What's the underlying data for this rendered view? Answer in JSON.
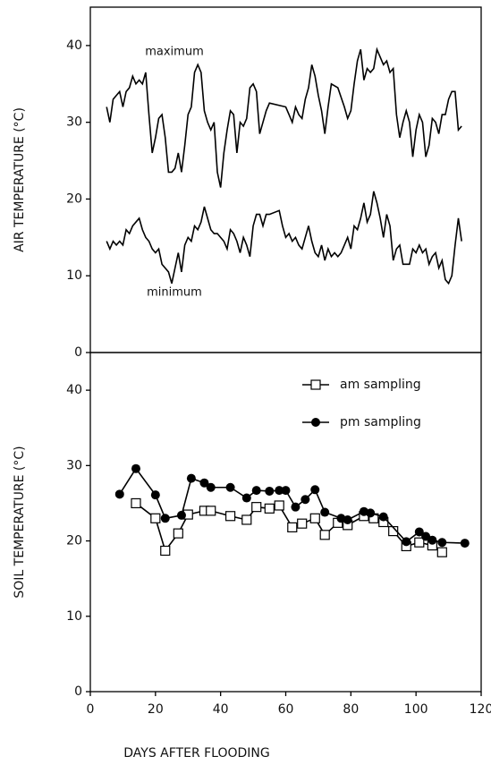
{
  "chart_data": [
    {
      "type": "line",
      "y_label": "AIR TEMPERATURE (°C)",
      "annotations": [
        "maximum",
        "minimum"
      ],
      "xlim": [
        0,
        120
      ],
      "ylim": [
        0,
        45
      ],
      "yticks": [
        0,
        10,
        20,
        30,
        40
      ],
      "series": [
        {
          "color": "#000000",
          "x": [
            5,
            6,
            7,
            8,
            9,
            10,
            11,
            12,
            13,
            14,
            15,
            16,
            17,
            18,
            19,
            20,
            21,
            22,
            23,
            24,
            25,
            26,
            27,
            28,
            29,
            30,
            31,
            32,
            33,
            34,
            35,
            36,
            37,
            38,
            39,
            40,
            41,
            42,
            43,
            44,
            45,
            46,
            47,
            48,
            49,
            50,
            51,
            52,
            53,
            54,
            55,
            60,
            61,
            62,
            63,
            64,
            65,
            66,
            67,
            68,
            69,
            70,
            71,
            72,
            73,
            74,
            76,
            78,
            79,
            80,
            81,
            82,
            83,
            84,
            85,
            86,
            87,
            88,
            89,
            90,
            91,
            92,
            93,
            94,
            95,
            96,
            97,
            98,
            99,
            100,
            101,
            102,
            103,
            104,
            105,
            106,
            107,
            108,
            109,
            110,
            111,
            112,
            113,
            114
          ],
          "values": [
            32,
            30,
            33,
            33.5,
            34,
            32,
            34,
            34.5,
            36,
            35,
            35.5,
            35,
            36.5,
            31,
            26,
            28,
            30.5,
            31,
            28,
            23.5,
            23.5,
            24,
            26,
            23.5,
            27,
            31,
            32,
            36.5,
            37.5,
            36.5,
            31.5,
            30,
            29,
            30,
            23.5,
            21.5,
            26,
            29,
            31.5,
            31,
            26,
            30,
            29.5,
            30.5,
            34.5,
            35,
            34,
            28.5,
            30,
            31.5,
            32.5,
            32,
            31,
            30,
            32,
            31,
            30.5,
            33,
            34.5,
            37.5,
            36,
            33.5,
            31.5,
            28.5,
            32,
            35,
            34.5,
            32,
            30.5,
            31.5,
            35,
            38,
            39.5,
            35.5,
            37,
            36.5,
            37,
            39.5,
            38.5,
            37.5,
            38,
            36.5,
            37,
            31,
            28,
            30,
            31.5,
            30,
            25.5,
            29,
            31,
            30,
            25.5,
            27,
            30.5,
            30,
            28.5,
            31,
            31,
            33,
            34,
            34,
            29,
            29.5
          ]
        },
        {
          "color": "#000000",
          "x": [
            5,
            6,
            7,
            8,
            9,
            10,
            11,
            12,
            13,
            14,
            15,
            16,
            17,
            18,
            19,
            20,
            21,
            22,
            23,
            24,
            25,
            26,
            27,
            28,
            29,
            30,
            31,
            32,
            33,
            34,
            35,
            36,
            37,
            38,
            39,
            40,
            41,
            42,
            43,
            44,
            45,
            46,
            47,
            48,
            49,
            50,
            51,
            52,
            53,
            54,
            55,
            58,
            59,
            60,
            61,
            62,
            63,
            64,
            65,
            66,
            67,
            68,
            69,
            70,
            71,
            72,
            73,
            74,
            75,
            76,
            77,
            78,
            79,
            80,
            81,
            82,
            83,
            84,
            85,
            86,
            87,
            88,
            89,
            90,
            91,
            92,
            93,
            94,
            95,
            96,
            97,
            98,
            99,
            100,
            101,
            102,
            103,
            104,
            105,
            106,
            107,
            108,
            109,
            110,
            111,
            112,
            113,
            114
          ],
          "values": [
            14.5,
            13.5,
            14.5,
            14,
            14.5,
            14,
            16,
            15.5,
            16.5,
            17,
            17.5,
            16,
            15,
            14.5,
            13.5,
            13,
            13.5,
            11.5,
            11,
            10.5,
            9,
            11,
            13,
            10.5,
            14,
            15,
            14.5,
            16.5,
            16,
            17,
            19,
            17.5,
            16,
            15.5,
            15.5,
            15,
            14.5,
            13.5,
            16,
            15.5,
            14.5,
            13,
            15,
            14,
            12.5,
            16.5,
            18,
            18,
            16.5,
            18,
            18,
            18.5,
            16.5,
            15,
            15.5,
            14.5,
            15,
            14,
            13.5,
            15,
            16.5,
            14.5,
            13,
            12.5,
            14,
            12,
            13.5,
            12.5,
            13,
            12.5,
            13,
            14,
            15,
            13.5,
            16.5,
            16,
            17.5,
            19.5,
            17,
            18,
            21,
            19.5,
            17.5,
            15,
            18,
            16.5,
            12,
            13.5,
            14,
            11.5,
            11.5,
            11.5,
            13.5,
            13,
            14,
            13,
            13.5,
            11.5,
            12.5,
            13,
            11,
            12,
            9.5,
            9,
            10,
            14,
            17.5,
            14.5
          ]
        }
      ]
    },
    {
      "type": "line",
      "y_label": "SOIL TEMPERATURE (°C)",
      "x_label": "DAYS AFTER FLOODING",
      "xlim": [
        0,
        120
      ],
      "xticks": [
        0,
        20,
        40,
        60,
        80,
        100,
        120
      ],
      "ylim": [
        0,
        45
      ],
      "yticks": [
        0,
        10,
        20,
        30,
        40
      ],
      "legend": "upper right",
      "series": [
        {
          "name": "am sampling",
          "color": "#000000",
          "marker": "square",
          "x": [
            14,
            20,
            23,
            27,
            30,
            35,
            37,
            43,
            48,
            51,
            55,
            58,
            62,
            65,
            69,
            72,
            76,
            79,
            84,
            87,
            90,
            93,
            97,
            101,
            105,
            108
          ],
          "values": [
            25,
            23,
            18.7,
            21,
            23.5,
            24,
            24,
            23.3,
            22.8,
            24.5,
            24.3,
            24.7,
            21.8,
            22.3,
            23,
            20.8,
            22.4,
            22.1,
            23.3,
            23,
            22.5,
            21.3,
            19.3,
            19.8,
            19.4,
            18.5
          ]
        },
        {
          "name": "pm sampling",
          "color": "#000000",
          "marker": "circle",
          "x": [
            9,
            14,
            20,
            23,
            28,
            31,
            35,
            37,
            43,
            48,
            51,
            55,
            58,
            60,
            63,
            66,
            69,
            72,
            77,
            79,
            84,
            86,
            90,
            97,
            101,
            103,
            105,
            108,
            115
          ],
          "values": [
            26.2,
            29.6,
            26.1,
            23,
            23.4,
            28.3,
            27.7,
            27.1,
            27.1,
            25.7,
            26.7,
            26.6,
            26.7,
            26.7,
            24.5,
            25.5,
            26.8,
            23.8,
            23,
            22.8,
            23.9,
            23.7,
            23.2,
            19.9,
            21.2,
            20.6,
            20.1,
            19.8,
            19.7
          ]
        }
      ]
    }
  ]
}
